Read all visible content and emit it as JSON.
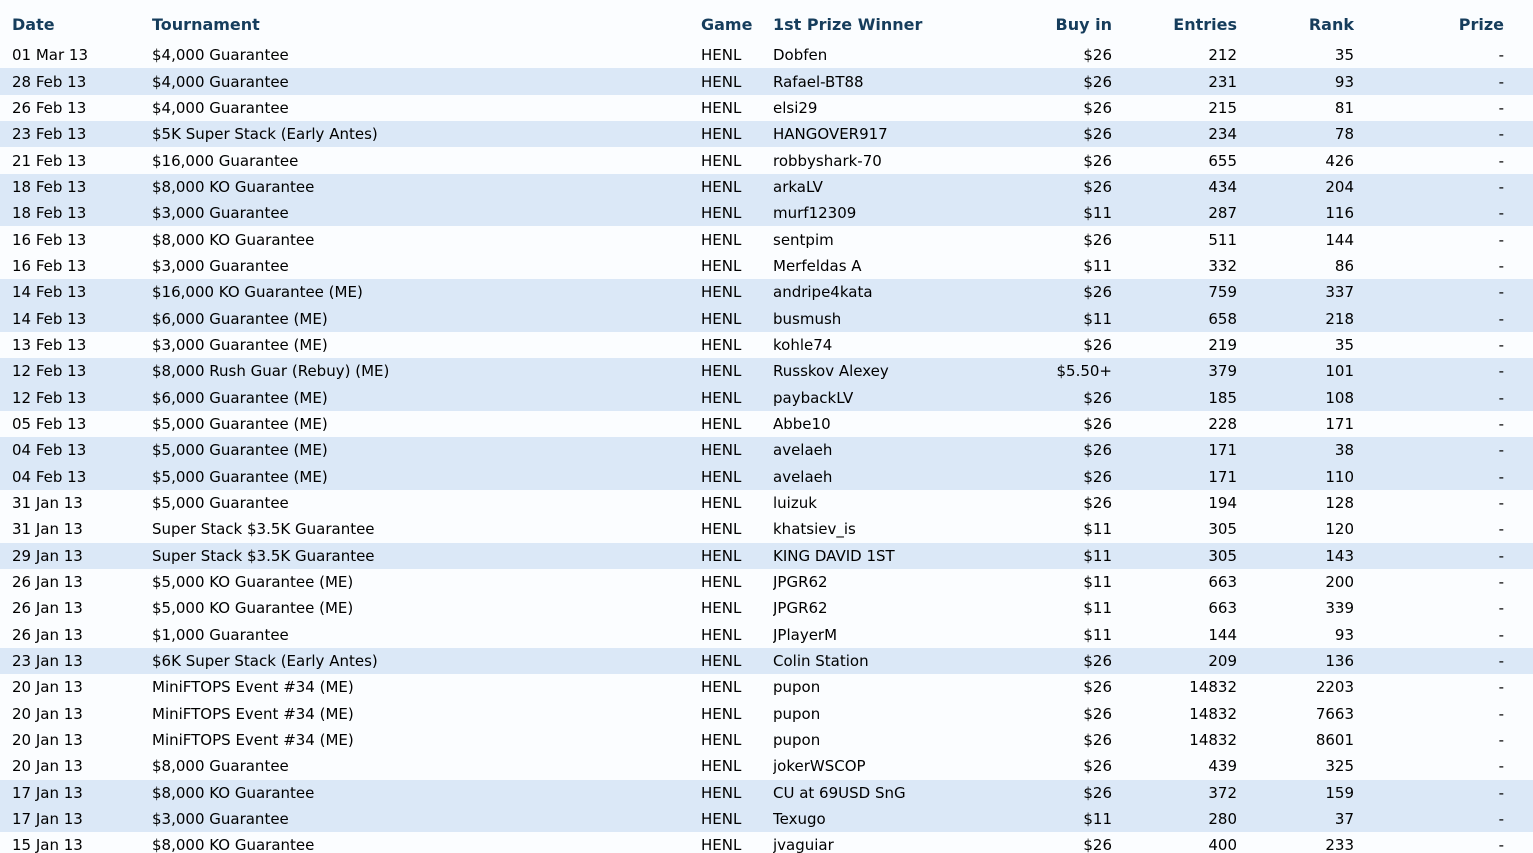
{
  "colors": {
    "stripe_row_bg": "#dbe8f7",
    "plain_row_bg": "#fbfdff",
    "header_text": "#163d5c",
    "body_text": "#000000"
  },
  "table": {
    "columns": [
      {
        "key": "date",
        "label": "Date",
        "align": "left"
      },
      {
        "key": "tournament",
        "label": "Tournament",
        "align": "left"
      },
      {
        "key": "game",
        "label": "Game",
        "align": "left"
      },
      {
        "key": "winner",
        "label": "1st Prize Winner",
        "align": "left"
      },
      {
        "key": "buyin",
        "label": "Buy in",
        "align": "right"
      },
      {
        "key": "entries",
        "label": "Entries",
        "align": "right"
      },
      {
        "key": "rank",
        "label": "Rank",
        "align": "right"
      },
      {
        "key": "prize",
        "label": "Prize",
        "align": "right"
      }
    ],
    "rows": [
      {
        "date": "01 Mar 13",
        "tournament": "$4,000 Guarantee",
        "game": "HENL",
        "winner": "Dobfen",
        "buyin": "$26",
        "entries": "212",
        "rank": "35",
        "prize": "-",
        "striped": false
      },
      {
        "date": "28 Feb 13",
        "tournament": "$4,000 Guarantee",
        "game": "HENL",
        "winner": "Rafael-BT88",
        "buyin": "$26",
        "entries": "231",
        "rank": "93",
        "prize": "-",
        "striped": true
      },
      {
        "date": "26 Feb 13",
        "tournament": "$4,000 Guarantee",
        "game": "HENL",
        "winner": "elsi29",
        "buyin": "$26",
        "entries": "215",
        "rank": "81",
        "prize": "-",
        "striped": false
      },
      {
        "date": "23 Feb 13",
        "tournament": "$5K Super Stack (Early Antes)",
        "game": "HENL",
        "winner": "HANGOVER917",
        "buyin": "$26",
        "entries": "234",
        "rank": "78",
        "prize": "-",
        "striped": true
      },
      {
        "date": "21 Feb 13",
        "tournament": "$16,000 Guarantee",
        "game": "HENL",
        "winner": "robbyshark-70",
        "buyin": "$26",
        "entries": "655",
        "rank": "426",
        "prize": "-",
        "striped": false
      },
      {
        "date": "18 Feb 13",
        "tournament": "$8,000 KO Guarantee",
        "game": "HENL",
        "winner": "arkaLV",
        "buyin": "$26",
        "entries": "434",
        "rank": "204",
        "prize": "-",
        "striped": true
      },
      {
        "date": "18 Feb 13",
        "tournament": "$3,000 Guarantee",
        "game": "HENL",
        "winner": "murf12309",
        "buyin": "$11",
        "entries": "287",
        "rank": "116",
        "prize": "-",
        "striped": true
      },
      {
        "date": "16 Feb 13",
        "tournament": "$8,000 KO Guarantee",
        "game": "HENL",
        "winner": "sentpim",
        "buyin": "$26",
        "entries": "511",
        "rank": "144",
        "prize": "-",
        "striped": false
      },
      {
        "date": "16 Feb 13",
        "tournament": "$3,000 Guarantee",
        "game": "HENL",
        "winner": "Merfeldas A",
        "buyin": "$11",
        "entries": "332",
        "rank": "86",
        "prize": "-",
        "striped": false
      },
      {
        "date": "14 Feb 13",
        "tournament": "$16,000 KO Guarantee (ME)",
        "game": "HENL",
        "winner": "andripe4kata",
        "buyin": "$26",
        "entries": "759",
        "rank": "337",
        "prize": "-",
        "striped": true
      },
      {
        "date": "14 Feb 13",
        "tournament": "$6,000 Guarantee (ME)",
        "game": "HENL",
        "winner": "busmush",
        "buyin": "$11",
        "entries": "658",
        "rank": "218",
        "prize": "-",
        "striped": true
      },
      {
        "date": "13 Feb 13",
        "tournament": "$3,000 Guarantee (ME)",
        "game": "HENL",
        "winner": "kohle74",
        "buyin": "$26",
        "entries": "219",
        "rank": "35",
        "prize": "-",
        "striped": false
      },
      {
        "date": "12 Feb 13",
        "tournament": "$8,000 Rush Guar (Rebuy) (ME)",
        "game": "HENL",
        "winner": "Russkov Alexey",
        "buyin": "$5.50+",
        "entries": "379",
        "rank": "101",
        "prize": "-",
        "striped": true
      },
      {
        "date": "12 Feb 13",
        "tournament": "$6,000 Guarantee (ME)",
        "game": "HENL",
        "winner": "paybackLV",
        "buyin": "$26",
        "entries": "185",
        "rank": "108",
        "prize": "-",
        "striped": true
      },
      {
        "date": "05 Feb 13",
        "tournament": "$5,000 Guarantee (ME)",
        "game": "HENL",
        "winner": "Abbe10",
        "buyin": "$26",
        "entries": "228",
        "rank": "171",
        "prize": "-",
        "striped": false
      },
      {
        "date": "04 Feb 13",
        "tournament": "$5,000 Guarantee (ME)",
        "game": "HENL",
        "winner": "avelaeh",
        "buyin": "$26",
        "entries": "171",
        "rank": "38",
        "prize": "-",
        "striped": true
      },
      {
        "date": "04 Feb 13",
        "tournament": "$5,000 Guarantee (ME)",
        "game": "HENL",
        "winner": "avelaeh",
        "buyin": "$26",
        "entries": "171",
        "rank": "110",
        "prize": "-",
        "striped": true
      },
      {
        "date": "31 Jan 13",
        "tournament": "$5,000 Guarantee",
        "game": "HENL",
        "winner": "luizuk",
        "buyin": "$26",
        "entries": "194",
        "rank": "128",
        "prize": "-",
        "striped": false
      },
      {
        "date": "31 Jan 13",
        "tournament": "Super Stack $3.5K Guarantee",
        "game": "HENL",
        "winner": "khatsiev_is",
        "buyin": "$11",
        "entries": "305",
        "rank": "120",
        "prize": "-",
        "striped": false
      },
      {
        "date": "29 Jan 13",
        "tournament": "Super Stack $3.5K Guarantee",
        "game": "HENL",
        "winner": "KING DAVID 1ST",
        "buyin": "$11",
        "entries": "305",
        "rank": "143",
        "prize": "-",
        "striped": true
      },
      {
        "date": "26 Jan 13",
        "tournament": "$5,000 KO Guarantee (ME)",
        "game": "HENL",
        "winner": "JPGR62",
        "buyin": "$11",
        "entries": "663",
        "rank": "200",
        "prize": "-",
        "striped": false
      },
      {
        "date": "26 Jan 13",
        "tournament": "$5,000 KO Guarantee (ME)",
        "game": "HENL",
        "winner": "JPGR62",
        "buyin": "$11",
        "entries": "663",
        "rank": "339",
        "prize": "-",
        "striped": false
      },
      {
        "date": "26 Jan 13",
        "tournament": "$1,000 Guarantee",
        "game": "HENL",
        "winner": "JPlayerM",
        "buyin": "$11",
        "entries": "144",
        "rank": "93",
        "prize": "-",
        "striped": false
      },
      {
        "date": "23 Jan 13",
        "tournament": "$6K Super Stack (Early Antes)",
        "game": "HENL",
        "winner": "Colin Station",
        "buyin": "$26",
        "entries": "209",
        "rank": "136",
        "prize": "-",
        "striped": true
      },
      {
        "date": "20 Jan 13",
        "tournament": "MiniFTOPS Event #34 (ME)",
        "game": "HENL",
        "winner": "pupon",
        "buyin": "$26",
        "entries": "14832",
        "rank": "2203",
        "prize": "-",
        "striped": false
      },
      {
        "date": "20 Jan 13",
        "tournament": "MiniFTOPS Event #34 (ME)",
        "game": "HENL",
        "winner": "pupon",
        "buyin": "$26",
        "entries": "14832",
        "rank": "7663",
        "prize": "-",
        "striped": false
      },
      {
        "date": "20 Jan 13",
        "tournament": "MiniFTOPS Event #34 (ME)",
        "game": "HENL",
        "winner": "pupon",
        "buyin": "$26",
        "entries": "14832",
        "rank": "8601",
        "prize": "-",
        "striped": false
      },
      {
        "date": "20 Jan 13",
        "tournament": "$8,000 Guarantee",
        "game": "HENL",
        "winner": "jokerWSCOP",
        "buyin": "$26",
        "entries": "439",
        "rank": "325",
        "prize": "-",
        "striped": false
      },
      {
        "date": "17 Jan 13",
        "tournament": "$8,000 KO Guarantee",
        "game": "HENL",
        "winner": "CU at 69USD SnG",
        "buyin": "$26",
        "entries": "372",
        "rank": "159",
        "prize": "-",
        "striped": true
      },
      {
        "date": "17 Jan 13",
        "tournament": "$3,000 Guarantee",
        "game": "HENL",
        "winner": "Texugo",
        "buyin": "$11",
        "entries": "280",
        "rank": "37",
        "prize": "-",
        "striped": true
      },
      {
        "date": "15 Jan 13",
        "tournament": "$8,000 KO Guarantee",
        "game": "HENL",
        "winner": "jvaguiar",
        "buyin": "$26",
        "entries": "400",
        "rank": "233",
        "prize": "-",
        "striped": false
      }
    ]
  }
}
